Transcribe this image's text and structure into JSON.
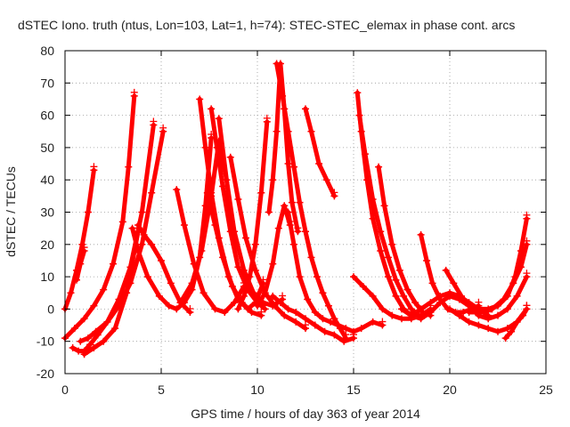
{
  "chart_data": {
    "type": "scatter",
    "title": "dSTEC Iono. truth (ntus, Lon=103, Lat=1, h=74): STEC-STEC_elemax in phase cont. arcs",
    "xlabel": "GPS time / hours of day 363 of year 2014",
    "ylabel": "dSTEC  / TECUs",
    "xlim": [
      0,
      25
    ],
    "ylim": [
      -20,
      80
    ],
    "xticks": [
      0,
      5,
      10,
      15,
      20,
      25
    ],
    "yticks": [
      -20,
      -10,
      0,
      10,
      20,
      30,
      40,
      50,
      60,
      70,
      80
    ],
    "grid": true,
    "marker": "plus",
    "color": "#ff0000",
    "series": [
      {
        "x": [
          0.0,
          0.3,
          0.6,
          0.9,
          1.2,
          1.5
        ],
        "y": [
          0,
          5,
          12,
          20,
          30,
          43
        ]
      },
      {
        "x": [
          0.6,
          0.8,
          1.0
        ],
        "y": [
          9,
          14,
          18
        ]
      },
      {
        "x": [
          0.0,
          0.5,
          1.0,
          1.5,
          2.0,
          2.5,
          3.0,
          3.3,
          3.6
        ],
        "y": [
          -9,
          -6,
          -3,
          1,
          6,
          14,
          27,
          44,
          66
        ]
      },
      {
        "x": [
          0.4,
          0.7,
          1.0,
          1.3,
          1.7,
          2.2,
          2.8,
          3.4,
          4.0,
          4.6
        ],
        "y": [
          -12,
          -13,
          -13,
          -11,
          -8,
          -4,
          3,
          13,
          30,
          57
        ]
      },
      {
        "x": [
          0.8,
          1.2,
          1.6,
          2.2,
          2.8,
          3.4,
          4.0,
          4.5,
          5.1
        ],
        "y": [
          -10,
          -9,
          -7,
          -4,
          1,
          8,
          20,
          36,
          55
        ]
      },
      {
        "x": [
          1.0,
          1.5,
          2.0,
          2.6,
          3.2,
          3.8
        ],
        "y": [
          -14,
          -12,
          -10,
          -6,
          5,
          24
        ]
      },
      {
        "x": [
          3.8,
          4.1,
          4.5,
          5.0,
          5.5,
          6.0,
          6.5
        ],
        "y": [
          26,
          23,
          20,
          15,
          8,
          2,
          -1
        ]
      },
      {
        "x": [
          3.5,
          3.8,
          4.3,
          4.9,
          5.4,
          5.8,
          6.2,
          6.6,
          7.0,
          7.3,
          7.6
        ],
        "y": [
          25,
          18,
          10,
          4,
          1,
          0,
          2,
          6,
          16,
          32,
          53
        ]
      },
      {
        "x": [
          5.8,
          6.2,
          6.7,
          7.2,
          7.8,
          8.3,
          8.8,
          9.3
        ],
        "y": [
          37,
          26,
          14,
          5,
          0,
          -1,
          2,
          7
        ]
      },
      {
        "x": [
          6.0,
          6.6,
          7.1,
          7.6,
          8.0,
          8.4,
          8.8
        ],
        "y": [
          2,
          8,
          18,
          35,
          52,
          40,
          20
        ]
      },
      {
        "x": [
          7.0,
          7.3,
          7.6,
          8.0,
          8.5,
          9.0,
          9.5,
          9.9,
          10.3
        ],
        "y": [
          65,
          50,
          36,
          22,
          10,
          3,
          0,
          2,
          8
        ]
      },
      {
        "x": [
          7.4,
          7.8,
          8.2,
          8.7,
          9.2,
          9.7,
          10.2
        ],
        "y": [
          36,
          26,
          16,
          7,
          2,
          -1,
          -2
        ]
      },
      {
        "x": [
          7.6,
          7.9,
          8.2,
          8.6,
          9.0,
          9.5,
          10.0,
          10.4
        ],
        "y": [
          62,
          50,
          38,
          24,
          13,
          6,
          2,
          0
        ]
      },
      {
        "x": [
          8.0,
          8.4,
          8.8,
          9.3,
          9.8,
          10.3,
          10.8,
          11.3
        ],
        "y": [
          59,
          40,
          24,
          12,
          5,
          2,
          1,
          3
        ]
      },
      {
        "x": [
          8.6,
          9.0,
          9.4,
          9.9,
          10.4,
          10.9,
          11.4,
          12.0,
          12.5
        ],
        "y": [
          47,
          34,
          22,
          12,
          5,
          1,
          -2,
          -4,
          -6
        ]
      },
      {
        "x": [
          9.0,
          9.3,
          9.6,
          9.9,
          10.2,
          10.5
        ],
        "y": [
          0,
          4,
          10,
          20,
          36,
          58
        ]
      },
      {
        "x": [
          10.0,
          10.4,
          10.8,
          11.1,
          11.4,
          11.7
        ],
        "y": [
          1,
          5,
          14,
          25,
          32,
          26
        ]
      },
      {
        "x": [
          10.6,
          10.8,
          11.0,
          11.2,
          11.4,
          11.6,
          11.8,
          12.1
        ],
        "y": [
          30,
          40,
          55,
          76,
          62,
          45,
          33,
          24
        ]
      },
      {
        "x": [
          11.0,
          11.3,
          11.6,
          11.9,
          12.2,
          12.5,
          12.8,
          13.1,
          13.4,
          13.7,
          14.0,
          14.3,
          14.6
        ],
        "y": [
          76,
          66,
          55,
          44,
          33,
          24,
          16,
          10,
          5,
          1,
          -3,
          -6,
          -9
        ]
      },
      {
        "x": [
          10.8,
          11.2,
          11.6,
          12.0,
          12.5,
          13.0,
          13.5,
          14.0,
          14.5,
          15.0
        ],
        "y": [
          4,
          2,
          0,
          -1,
          -3,
          -5,
          -7,
          -8,
          -10,
          -9
        ]
      },
      {
        "x": [
          11.6,
          11.9,
          12.2,
          12.6,
          13.0,
          13.4,
          13.8,
          14.2,
          14.6,
          15.0,
          15.4,
          16.0,
          16.5
        ],
        "y": [
          30,
          20,
          10,
          3,
          -1,
          -3,
          -4,
          -5,
          -6,
          -7,
          -6,
          -4,
          -5
        ]
      },
      {
        "x": [
          12.5,
          12.8,
          13.2,
          13.6,
          14.0
        ],
        "y": [
          62,
          55,
          45,
          40,
          35
        ]
      },
      {
        "x": [
          15.2,
          15.4,
          15.7,
          16.0,
          16.4,
          16.8,
          17.2,
          17.6,
          18.0
        ],
        "y": [
          67,
          55,
          40,
          28,
          18,
          10,
          4,
          0,
          -2
        ]
      },
      {
        "x": [
          15.3,
          15.6,
          16.0,
          16.4,
          16.8,
          17.2,
          17.6,
          18.0,
          18.4
        ],
        "y": [
          60,
          48,
          34,
          24,
          16,
          9,
          4,
          0,
          -2
        ]
      },
      {
        "x": [
          15.0,
          15.5,
          16.0,
          16.5,
          17.0,
          17.5,
          18.0,
          18.5,
          19.0
        ],
        "y": [
          10,
          7,
          4,
          0,
          -2,
          -3,
          -3,
          -2,
          0
        ]
      },
      {
        "x": [
          16.3,
          16.6,
          17.0,
          17.4,
          17.8,
          18.2,
          18.6,
          19.0
        ],
        "y": [
          44,
          32,
          20,
          12,
          6,
          2,
          -1,
          -2
        ]
      },
      {
        "x": [
          18.5,
          18.8,
          19.1,
          19.5,
          19.9,
          20.3,
          20.7,
          21.1,
          21.5
        ],
        "y": [
          23,
          15,
          8,
          3,
          0,
          -1,
          -1,
          0,
          1
        ]
      },
      {
        "x": [
          17.5,
          18.0,
          18.5,
          19.0,
          19.5,
          20.0,
          20.5,
          21.0,
          21.5
        ],
        "y": [
          0,
          -2,
          -3,
          -1,
          2,
          4,
          3,
          1,
          -1
        ]
      },
      {
        "x": [
          18.0,
          18.5,
          19.0,
          19.5,
          20.0,
          20.5,
          21.0,
          21.5,
          22.0
        ],
        "y": [
          -2,
          0,
          2,
          4,
          5,
          4,
          2,
          0,
          -2
        ]
      },
      {
        "x": [
          19.8,
          20.2,
          20.6,
          21.0,
          21.5,
          22.0,
          22.5,
          23.0,
          23.5,
          24.0
        ],
        "y": [
          12,
          8,
          4,
          1,
          -2,
          -3,
          -2,
          0,
          4,
          10
        ]
      },
      {
        "x": [
          20.0,
          20.5,
          21.0,
          21.5,
          22.0,
          22.5,
          23.0,
          23.5,
          24.0
        ],
        "y": [
          0,
          -2,
          -4,
          -5,
          -6,
          -7,
          -6,
          -4,
          0
        ]
      },
      {
        "x": [
          21.5,
          22.0,
          22.5,
          23.0,
          23.4,
          23.7,
          24.0
        ],
        "y": [
          0,
          0,
          1,
          4,
          10,
          18,
          28
        ]
      },
      {
        "x": [
          21.0,
          21.6,
          22.2,
          22.8,
          23.3,
          23.7,
          24.0
        ],
        "y": [
          -1,
          -1,
          0,
          3,
          8,
          13,
          20
        ]
      },
      {
        "x": [
          22.9,
          23.2,
          23.5,
          23.8,
          24.0
        ],
        "y": [
          -9,
          -7,
          -4,
          -2,
          0
        ]
      }
    ]
  }
}
